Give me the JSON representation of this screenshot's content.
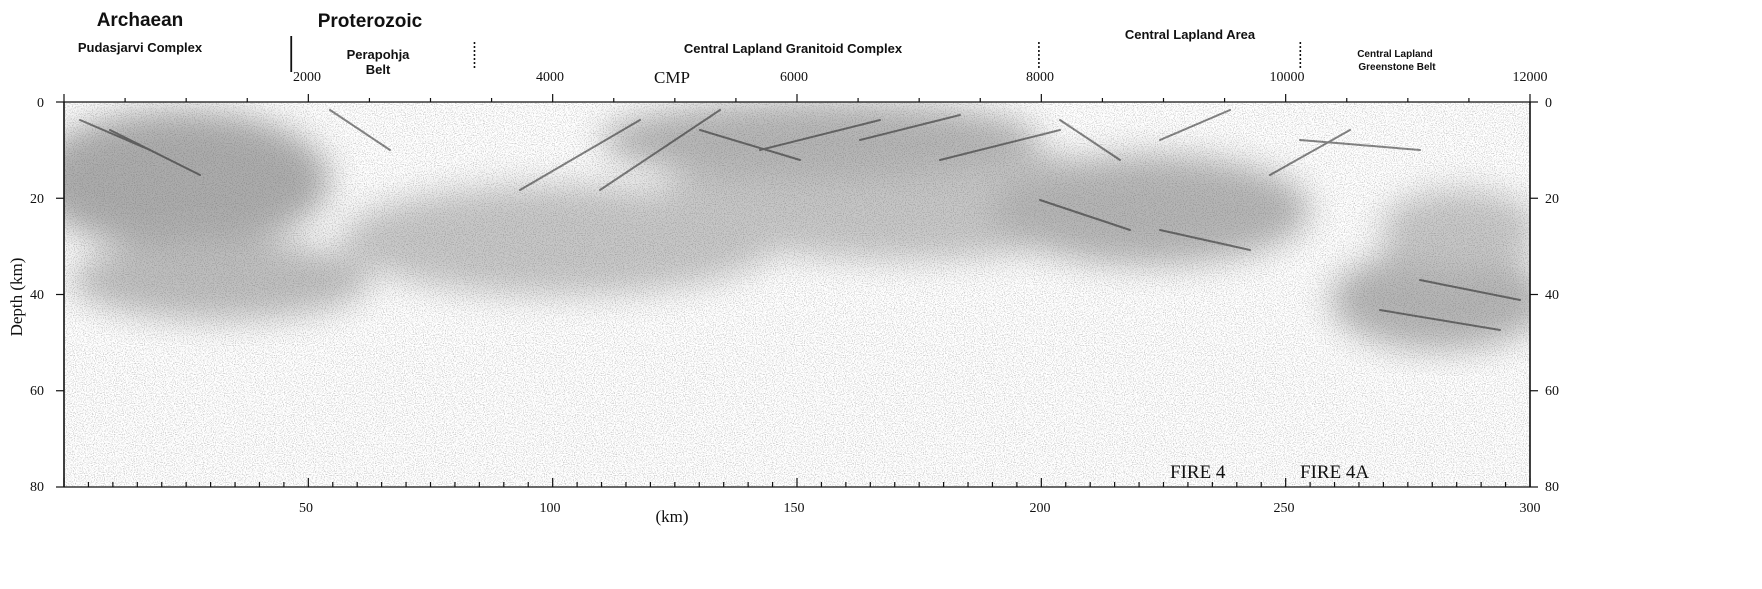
{
  "eras": [
    {
      "text": "Archaean"
    },
    {
      "text": "Proterozoic"
    }
  ],
  "regions": [
    {
      "lines": [
        "Pudasjarvi Complex"
      ]
    },
    {
      "lines": [
        "Perapohja",
        "Belt"
      ]
    },
    {
      "lines": [
        "Central Lapland Granitoid Complex"
      ]
    },
    {
      "lines": [
        "Central Lapland Area"
      ]
    },
    {
      "lines": [
        "Central Lapland",
        "Greenstone Belt"
      ]
    }
  ],
  "boundaries": [
    {
      "km": 46.5,
      "style": "solid"
    },
    {
      "km": 84,
      "style": "dashed"
    },
    {
      "km": 199.5,
      "style": "dashed"
    },
    {
      "km": 253,
      "style": "dashed"
    }
  ],
  "top_axis": {
    "label": "CMP",
    "ticks": [
      "2000",
      "4000",
      "6000",
      "8000",
      "10000",
      "12000"
    ],
    "cmp_max": 12000
  },
  "bottom_axis": {
    "label": "(km)",
    "ticks": [
      "50",
      "100",
      "150",
      "200",
      "250",
      "300"
    ],
    "km_max": 300
  },
  "depth_axis": {
    "label": "Depth (km)",
    "ticks": [
      "0",
      "20",
      "40",
      "60",
      "80"
    ],
    "max": 80
  },
  "profile_labels": [
    {
      "text": "FIRE 4"
    },
    {
      "text": "FIRE 4A"
    }
  ],
  "colors": {
    "ink": "#111111",
    "background": "#ffffff"
  }
}
